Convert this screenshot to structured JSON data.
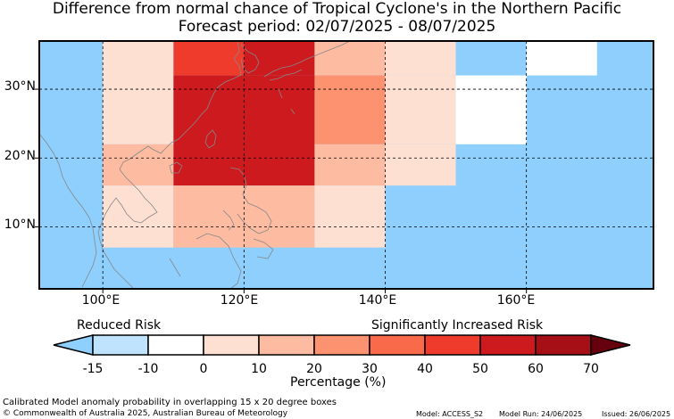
{
  "title": "Difference from normal chance of Tropical Cyclone's in the Northern Pacific",
  "subtitle": "Forecast period: 02/07/2025 - 08/07/2025",
  "map": {
    "lon_range": [
      91,
      178
    ],
    "lat_range": [
      1,
      37
    ],
    "x_ticks": [
      "100°E",
      "120°E",
      "140°E",
      "160°E"
    ],
    "y_ticks": [
      "30°N",
      "20°N",
      "10°N"
    ],
    "grid": "dashed",
    "cells": [
      {
        "lon": [
          110,
          120
        ],
        "lat": [
          32,
          37
        ],
        "pct": 45
      },
      {
        "lon": [
          120,
          130
        ],
        "lat": [
          32,
          37
        ],
        "pct": 55
      },
      {
        "lon": [
          130,
          140
        ],
        "lat": [
          32,
          37
        ],
        "pct": 10
      },
      {
        "lon": [
          140,
          150
        ],
        "lat": [
          32,
          37
        ],
        "pct": 5
      },
      {
        "lon": [
          160,
          170
        ],
        "lat": [
          32,
          37
        ],
        "pct": -10
      },
      {
        "lon": [
          110,
          130
        ],
        "lat": [
          16,
          32
        ],
        "pct": 55
      },
      {
        "lon": [
          130,
          140
        ],
        "lat": [
          22,
          32
        ],
        "pct": 25
      },
      {
        "lon": [
          140,
          150
        ],
        "lat": [
          22,
          32
        ],
        "pct": 5
      },
      {
        "lon": [
          150,
          160
        ],
        "lat": [
          22,
          32
        ],
        "pct": -10
      },
      {
        "lon": [
          100,
          110
        ],
        "lat": [
          22,
          37
        ],
        "pct": 5
      },
      {
        "lon": [
          100,
          110
        ],
        "lat": [
          16,
          22
        ],
        "pct": 15
      },
      {
        "lon": [
          130,
          140
        ],
        "lat": [
          16,
          22
        ],
        "pct": 15
      },
      {
        "lon": [
          140,
          150
        ],
        "lat": [
          16,
          22
        ],
        "pct": 0
      },
      {
        "lon": [
          100,
          110
        ],
        "lat": [
          7,
          16
        ],
        "pct": 0
      },
      {
        "lon": [
          110,
          130
        ],
        "lat": [
          7,
          16
        ],
        "pct": 15
      },
      {
        "lon": [
          130,
          140
        ],
        "lat": [
          7,
          16
        ],
        "pct": 0
      }
    ]
  },
  "colorbar": {
    "label_left": "Reduced Risk",
    "label_right": "Significantly Increased Risk",
    "ticks": [
      "-15",
      "-10",
      "0",
      "10",
      "20",
      "30",
      "40",
      "50",
      "60",
      "70"
    ],
    "colors": [
      "#bfe3fd",
      "#ffffff",
      "#fee0d3",
      "#fdbba1",
      "#fc926f",
      "#f96a4b",
      "#ef3b2c",
      "#cc1a1e",
      "#a50f15"
    ],
    "under_color": "#8ecffd",
    "over_color": "#67000d",
    "axis_label": "Percentage (%)"
  },
  "footer": {
    "line1": "Calibrated Model anomaly probability in overlapping 15 x 20 degree boxes",
    "line2": "© Commonwealth of Australia 2025, Australian Bureau of Meteorology",
    "model": "Model: ACCESS_S2",
    "run": "Model Run: 24/06/2025",
    "issued": "Issued: 26/06/2025"
  }
}
